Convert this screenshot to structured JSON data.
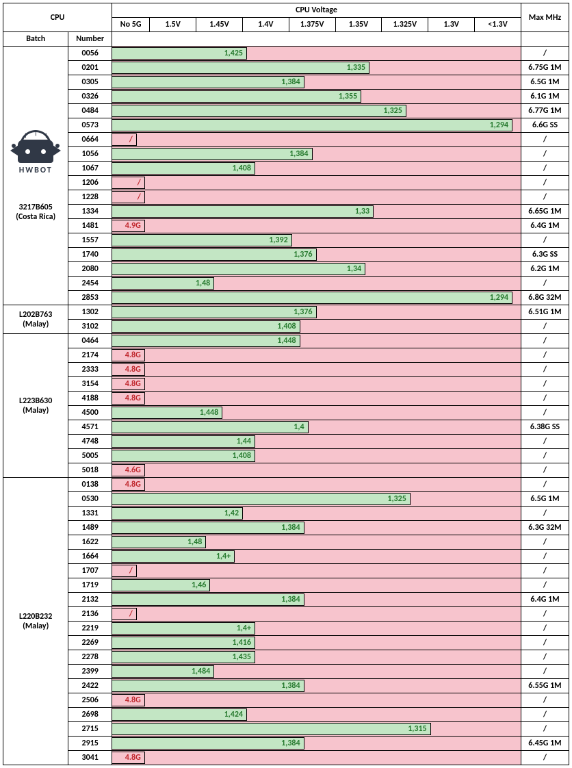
{
  "title_cpu": "CPU",
  "title_voltage": "CPU Voltage",
  "header_batch": "Batch",
  "header_number": "Number",
  "logo_text": "HWBOT",
  "voltage_headers": [
    "No 5G",
    "1.5V",
    "1.45V",
    "1.4V",
    "1.375V",
    "1.35V",
    "1.325V",
    "1.3V",
    "<1.3V"
  ],
  "maxmhz_header": "Max MHz",
  "colors": {
    "bar_bg_pink": "#f7c4cd",
    "bar_fill_green": "#c3e6c4",
    "text_green": "#277a2f",
    "text_red": "#c0272d",
    "border": "#000000"
  },
  "bar_area_cols": 9,
  "batches": [
    {
      "name_lines": [
        "3217B605",
        "(Costa Rica)"
      ],
      "show_logo": true,
      "rows": [
        {
          "num": "0056",
          "bar": {
            "pct": 33,
            "label": "1,425",
            "color": "green"
          },
          "max": "/"
        },
        {
          "num": "0201",
          "bar": {
            "pct": 63,
            "label": "1,335",
            "color": "green"
          },
          "max": "6.75G 1M"
        },
        {
          "num": "0305",
          "bar": {
            "pct": 47,
            "label": "1,384",
            "color": "green"
          },
          "max": "6.5G 1M"
        },
        {
          "num": "0326",
          "bar": {
            "pct": 61,
            "label": "1,355",
            "color": "green"
          },
          "max": "6.1G 1M"
        },
        {
          "num": "0484",
          "bar": {
            "pct": 72,
            "label": "1,325",
            "color": "green"
          },
          "max": "6.77G 1M"
        },
        {
          "num": "0573",
          "bar": {
            "pct": 98,
            "label": "1,294",
            "color": "green"
          },
          "max": "6.6G SS"
        },
        {
          "num": "0664",
          "bar": {
            "pct": 6,
            "label": "/",
            "color": "red",
            "nolabelpos": true
          },
          "max": "/"
        },
        {
          "num": "1056",
          "bar": {
            "pct": 49,
            "label": "1,384",
            "color": "green"
          },
          "max": "/"
        },
        {
          "num": "1067",
          "bar": {
            "pct": 35,
            "label": "1,408",
            "color": "green"
          },
          "max": "/"
        },
        {
          "num": "1206",
          "bar": {
            "pct": 8,
            "label": "/",
            "color": "red",
            "nolabelpos": true
          },
          "max": "/"
        },
        {
          "num": "1228",
          "bar": {
            "pct": 8,
            "label": "/",
            "color": "red",
            "nolabelpos": true
          },
          "max": "/"
        },
        {
          "num": "1334",
          "bar": {
            "pct": 64,
            "label": "1,33",
            "color": "green"
          },
          "max": "6.65G 1M"
        },
        {
          "num": "1481",
          "bar": {
            "pct": 8,
            "label": "4.9G",
            "color": "red"
          },
          "max": "6.4G 1M"
        },
        {
          "num": "1557",
          "bar": {
            "pct": 44,
            "label": "1,392",
            "color": "green"
          },
          "max": "/"
        },
        {
          "num": "1740",
          "bar": {
            "pct": 50,
            "label": "1,376",
            "color": "green"
          },
          "max": "6.3G SS"
        },
        {
          "num": "2080",
          "bar": {
            "pct": 62,
            "label": "1,34",
            "color": "green"
          },
          "max": "6.2G 1M"
        },
        {
          "num": "2454",
          "bar": {
            "pct": 25,
            "label": "1,48",
            "color": "green"
          },
          "max": "/"
        },
        {
          "num": "2853",
          "bar": {
            "pct": 98,
            "label": "1,294",
            "color": "green"
          },
          "max": "6.8G 32M"
        }
      ]
    },
    {
      "name_lines": [
        "L202B763",
        "(Malay)"
      ],
      "rows": [
        {
          "num": "1302",
          "bar": {
            "pct": 50,
            "label": "1,376",
            "color": "green"
          },
          "max": "6.51G 1M"
        },
        {
          "num": "3102",
          "bar": {
            "pct": 46,
            "label": "1,408",
            "color": "green"
          },
          "max": "/"
        }
      ]
    },
    {
      "name_lines": [
        "L223B630",
        "(Malay)"
      ],
      "rows": [
        {
          "num": "0464",
          "bar": {
            "pct": 46,
            "label": "1,448",
            "color": "green"
          },
          "max": "/"
        },
        {
          "num": "2174",
          "bar": {
            "pct": 8,
            "label": "4.8G",
            "color": "red"
          },
          "max": "/"
        },
        {
          "num": "2333",
          "bar": {
            "pct": 8,
            "label": "4.8G",
            "color": "red"
          },
          "max": "/"
        },
        {
          "num": "3154",
          "bar": {
            "pct": 8,
            "label": "4.8G",
            "color": "red"
          },
          "max": "/"
        },
        {
          "num": "4188",
          "bar": {
            "pct": 8,
            "label": "4.8G",
            "color": "red"
          },
          "max": "/"
        },
        {
          "num": "4500",
          "bar": {
            "pct": 27,
            "label": "1,448",
            "color": "green"
          },
          "max": "/"
        },
        {
          "num": "4571",
          "bar": {
            "pct": 48,
            "label": "1,4",
            "color": "green"
          },
          "max": "6.38G SS"
        },
        {
          "num": "4748",
          "bar": {
            "pct": 35,
            "label": "1,44",
            "color": "green"
          },
          "max": "/"
        },
        {
          "num": "5005",
          "bar": {
            "pct": 35,
            "label": "1,408",
            "color": "green"
          },
          "max": "/"
        },
        {
          "num": "5018",
          "bar": {
            "pct": 8,
            "label": "4.6G",
            "color": "red"
          },
          "max": "/"
        }
      ]
    },
    {
      "name_lines": [
        "L220B232",
        "(Malay)"
      ],
      "rows": [
        {
          "num": "0138",
          "bar": {
            "pct": 8,
            "label": "4.8G",
            "color": "red"
          },
          "max": "/"
        },
        {
          "num": "0530",
          "bar": {
            "pct": 73,
            "label": "1,325",
            "color": "green"
          },
          "max": "6.5G 1M"
        },
        {
          "num": "1331",
          "bar": {
            "pct": 32,
            "label": "1,42",
            "color": "green"
          },
          "max": "/"
        },
        {
          "num": "1489",
          "bar": {
            "pct": 47,
            "label": "1,384",
            "color": "green"
          },
          "max": "6.3G 32M"
        },
        {
          "num": "1622",
          "bar": {
            "pct": 23,
            "label": "1,48",
            "color": "green"
          },
          "max": "/"
        },
        {
          "num": "1664",
          "bar": {
            "pct": 30,
            "label": "1,4+",
            "color": "green"
          },
          "max": "/"
        },
        {
          "num": "1707",
          "bar": {
            "pct": 6,
            "label": "/",
            "color": "red",
            "nolabelpos": true
          },
          "max": "/"
        },
        {
          "num": "1719",
          "bar": {
            "pct": 24,
            "label": "1,46",
            "color": "green"
          },
          "max": "/"
        },
        {
          "num": "2132",
          "bar": {
            "pct": 47,
            "label": "1,384",
            "color": "green"
          },
          "max": "6.4G 1M"
        },
        {
          "num": "2136",
          "bar": {
            "pct": 6,
            "label": "/",
            "color": "red",
            "nolabelpos": true
          },
          "max": "/"
        },
        {
          "num": "2219",
          "bar": {
            "pct": 35,
            "label": "1,4+",
            "color": "green"
          },
          "max": "/"
        },
        {
          "num": "2269",
          "bar": {
            "pct": 35,
            "label": "1,416",
            "color": "green"
          },
          "max": "/"
        },
        {
          "num": "2278",
          "bar": {
            "pct": 35,
            "label": "1,435",
            "color": "green"
          },
          "max": "/"
        },
        {
          "num": "2399",
          "bar": {
            "pct": 25,
            "label": "1,484",
            "color": "green"
          },
          "max": "/"
        },
        {
          "num": "2422",
          "bar": {
            "pct": 47,
            "label": "1,384",
            "color": "green"
          },
          "max": "6.55G 1M"
        },
        {
          "num": "2506",
          "bar": {
            "pct": 8,
            "label": "4.8G",
            "color": "red"
          },
          "max": "/"
        },
        {
          "num": "2698",
          "bar": {
            "pct": 33,
            "label": "1,424",
            "color": "green"
          },
          "max": "/"
        },
        {
          "num": "2715",
          "bar": {
            "pct": 78,
            "label": "1,315",
            "color": "green"
          },
          "max": "/"
        },
        {
          "num": "2915",
          "bar": {
            "pct": 47,
            "label": "1,384",
            "color": "green"
          },
          "max": "6.45G 1M"
        },
        {
          "num": "3041",
          "bar": {
            "pct": 8,
            "label": "4.8G",
            "color": "red"
          },
          "max": "/"
        }
      ]
    }
  ]
}
